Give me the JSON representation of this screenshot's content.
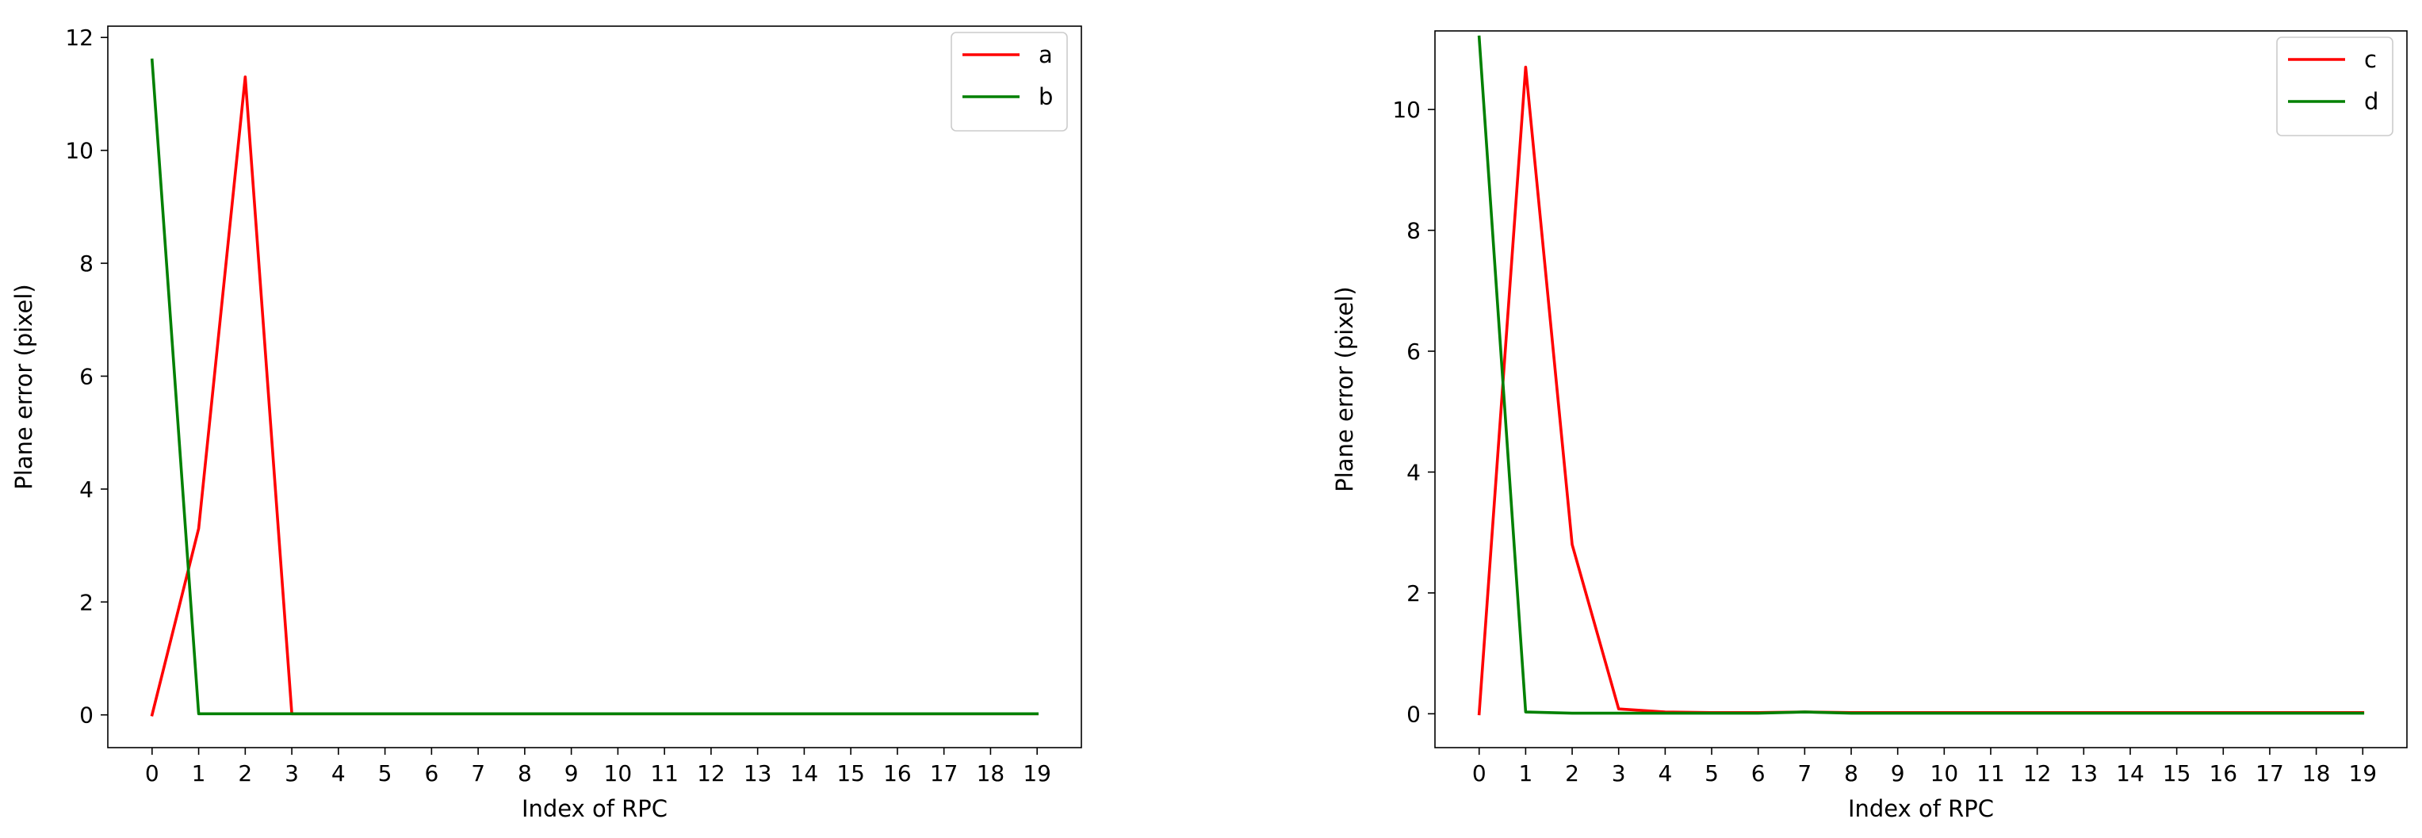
{
  "chart_data": [
    {
      "type": "line",
      "title": "",
      "xlabel": "Index of RPC",
      "ylabel": "Plane error (pixel)",
      "xlim": [
        -0.95,
        19.95
      ],
      "ylim": [
        -0.58,
        12.2
      ],
      "x_ticks": [
        0,
        1,
        2,
        3,
        4,
        5,
        6,
        7,
        8,
        9,
        10,
        11,
        12,
        13,
        14,
        15,
        16,
        17,
        18,
        19
      ],
      "y_ticks": [
        0,
        2,
        4,
        6,
        8,
        10,
        12
      ],
      "grid": false,
      "legend_position": "top-right",
      "x": [
        0,
        1,
        2,
        3,
        4,
        5,
        6,
        7,
        8,
        9,
        10,
        11,
        12,
        13,
        14,
        15,
        16,
        17,
        18,
        19
      ],
      "series": [
        {
          "name": "a",
          "color": "#ff0000",
          "values": [
            0,
            3.3,
            11.3,
            0.02,
            0.02,
            0.02,
            0.02,
            0.02,
            0.02,
            0.02,
            0.02,
            0.02,
            0.02,
            0.02,
            0.02,
            0.02,
            0.02,
            0.02,
            0.02,
            0.02
          ]
        },
        {
          "name": "b",
          "color": "#008000",
          "values": [
            11.6,
            0.02,
            0.02,
            0.02,
            0.02,
            0.02,
            0.02,
            0.02,
            0.02,
            0.02,
            0.02,
            0.02,
            0.02,
            0.02,
            0.02,
            0.02,
            0.02,
            0.02,
            0.02,
            0.02
          ]
        }
      ]
    },
    {
      "type": "line",
      "title": "",
      "xlabel": "Index of RPC",
      "ylabel": "Plane error (pixel)",
      "xlim": [
        -0.95,
        19.95
      ],
      "ylim": [
        -0.56,
        11.3
      ],
      "x_ticks": [
        0,
        1,
        2,
        3,
        4,
        5,
        6,
        7,
        8,
        9,
        10,
        11,
        12,
        13,
        14,
        15,
        16,
        17,
        18,
        19
      ],
      "y_ticks": [
        0,
        2,
        4,
        6,
        8,
        10
      ],
      "grid": false,
      "legend_position": "top-right",
      "x": [
        0,
        1,
        2,
        3,
        4,
        5,
        6,
        7,
        8,
        9,
        10,
        11,
        12,
        13,
        14,
        15,
        16,
        17,
        18,
        19
      ],
      "series": [
        {
          "name": "c",
          "color": "#ff0000",
          "values": [
            0,
            10.7,
            2.8,
            0.08,
            0.03,
            0.02,
            0.02,
            0.03,
            0.02,
            0.02,
            0.02,
            0.02,
            0.02,
            0.02,
            0.02,
            0.02,
            0.02,
            0.02,
            0.02,
            0.02
          ]
        },
        {
          "name": "d",
          "color": "#008000",
          "values": [
            11.2,
            0.03,
            0.01,
            0.01,
            0.01,
            0.01,
            0.01,
            0.03,
            0.01,
            0.01,
            0.01,
            0.01,
            0.01,
            0.01,
            0.01,
            0.01,
            0.01,
            0.01,
            0.01,
            0.01
          ]
        }
      ]
    }
  ]
}
